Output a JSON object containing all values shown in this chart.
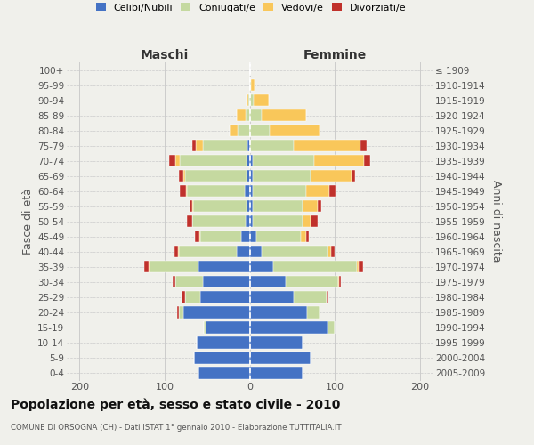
{
  "age_groups_bottom_to_top": [
    "0-4",
    "5-9",
    "10-14",
    "15-19",
    "20-24",
    "25-29",
    "30-34",
    "35-39",
    "40-44",
    "45-49",
    "50-54",
    "55-59",
    "60-64",
    "65-69",
    "70-74",
    "75-79",
    "80-84",
    "85-89",
    "90-94",
    "95-99",
    "100+"
  ],
  "birth_years_bottom_to_top": [
    "2005-2009",
    "2000-2004",
    "1995-1999",
    "1990-1994",
    "1985-1989",
    "1980-1984",
    "1975-1979",
    "1970-1974",
    "1965-1969",
    "1960-1964",
    "1955-1959",
    "1950-1954",
    "1945-1949",
    "1940-1944",
    "1935-1939",
    "1930-1934",
    "1925-1929",
    "1920-1924",
    "1915-1919",
    "1910-1914",
    "≤ 1909"
  ],
  "maschi": {
    "celibi": [
      60,
      65,
      62,
      52,
      78,
      58,
      55,
      60,
      15,
      10,
      5,
      4,
      6,
      4,
      4,
      3,
      0,
      0,
      0,
      0,
      0
    ],
    "coniugati": [
      0,
      0,
      0,
      2,
      5,
      18,
      32,
      58,
      68,
      48,
      62,
      62,
      68,
      72,
      78,
      52,
      14,
      5,
      2,
      0,
      0
    ],
    "vedovi": [
      0,
      0,
      0,
      0,
      0,
      0,
      0,
      1,
      1,
      1,
      1,
      1,
      1,
      2,
      5,
      8,
      10,
      10,
      2,
      0,
      0
    ],
    "divorziati": [
      0,
      0,
      0,
      0,
      2,
      4,
      3,
      5,
      4,
      5,
      6,
      4,
      7,
      5,
      8,
      5,
      0,
      0,
      0,
      0,
      0
    ]
  },
  "femmine": {
    "nubili": [
      62,
      72,
      62,
      92,
      68,
      52,
      42,
      28,
      14,
      8,
      4,
      4,
      4,
      4,
      4,
      0,
      0,
      0,
      0,
      0,
      0
    ],
    "coniugate": [
      0,
      0,
      0,
      8,
      14,
      38,
      62,
      98,
      78,
      52,
      58,
      58,
      62,
      68,
      72,
      52,
      24,
      14,
      5,
      2,
      0
    ],
    "vedove": [
      0,
      0,
      0,
      0,
      0,
      0,
      1,
      2,
      4,
      6,
      10,
      18,
      28,
      48,
      58,
      78,
      58,
      52,
      18,
      4,
      0
    ],
    "divorziate": [
      0,
      0,
      0,
      0,
      0,
      2,
      2,
      5,
      4,
      4,
      8,
      4,
      7,
      4,
      8,
      8,
      0,
      0,
      0,
      0,
      0
    ]
  },
  "colors": {
    "celibi": "#4472c4",
    "coniugati": "#c5d9a0",
    "vedovi": "#f9c75a",
    "divorziati": "#c0312b"
  },
  "xlim": [
    -215,
    215
  ],
  "xticks": [
    -200,
    -100,
    0,
    100,
    200
  ],
  "title": "Popolazione per età, sesso e stato civile - 2010",
  "subtitle": "COMUNE DI ORSOGNA (CH) - Dati ISTAT 1° gennaio 2010 - Elaborazione TUTTITALIA.IT",
  "ylabel_left": "Fasce di età",
  "ylabel_right": "Anni di nascita",
  "xlabel_left": "Maschi",
  "xlabel_right": "Femmine",
  "bg_color": "#f0f0eb",
  "grid_color": "#cccccc",
  "bar_height": 0.78
}
